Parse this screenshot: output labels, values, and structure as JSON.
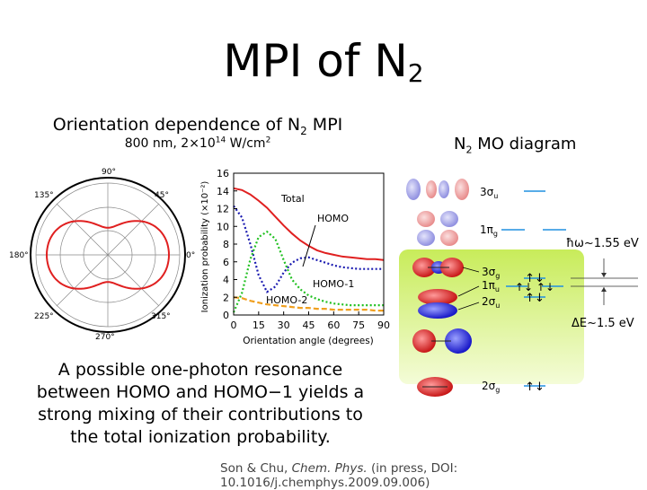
{
  "slide": {
    "title_main": "MPI of N",
    "title_sub": "2",
    "panel_title_pre": "Orientation dependence of N",
    "panel_title_sub": "2",
    "panel_title_post": " MPI",
    "panel_subtitle_pre": "800 nm, 2×10",
    "panel_subtitle_sup": "14",
    "panel_subtitle_post": " W/cm",
    "panel_subtitle_sup2": "2",
    "mo_title_pre": "N",
    "mo_title_sub": "2",
    "mo_title_post": " MO diagram",
    "caption_lines": [
      "A possible one-photon resonance",
      "between HOMO and HOMO−1 yields a",
      "strong mixing of their contributions to",
      "the total ionization probability."
    ],
    "ref_authors": "Son & Chu, ",
    "ref_journal": "Chem. Phys.",
    "ref_rest": " (in press, DOI: 10.1016/j.chemphys.2009.09.006)"
  },
  "polar_plot": {
    "angle_labels": [
      "90°",
      "45°",
      "0°",
      "315°",
      "270°",
      "225°",
      "180°",
      "135°"
    ],
    "curve_color": "#e02020"
  },
  "chart_data": {
    "type": "line",
    "xlabel": "Orientation angle (degrees)",
    "ylabel": "Ionization probability (×10⁻²)",
    "xlim": [
      0,
      90
    ],
    "ylim": [
      0,
      16
    ],
    "xticks": [
      0,
      15,
      30,
      45,
      60,
      75,
      90
    ],
    "yticks": [
      0,
      2,
      4,
      6,
      8,
      10,
      12,
      14,
      16
    ],
    "x": [
      0,
      5,
      10,
      15,
      20,
      25,
      30,
      35,
      40,
      45,
      50,
      55,
      60,
      65,
      70,
      75,
      80,
      85,
      90
    ],
    "series": [
      {
        "name": "Total",
        "style": "solid",
        "color": "#e02020",
        "values": [
          14.3,
          14.1,
          13.6,
          12.9,
          12.1,
          11.1,
          10.1,
          9.2,
          8.4,
          7.8,
          7.3,
          7.0,
          6.8,
          6.6,
          6.5,
          6.4,
          6.3,
          6.3,
          6.2
        ]
      },
      {
        "name": "HOMO",
        "style": "dotted",
        "color": "#1a1ab0",
        "values": [
          12.3,
          11.0,
          8.0,
          4.5,
          2.6,
          3.2,
          4.8,
          5.9,
          6.4,
          6.5,
          6.2,
          5.9,
          5.6,
          5.4,
          5.3,
          5.2,
          5.2,
          5.2,
          5.2
        ]
      },
      {
        "name": "HOMO-1",
        "style": "dotted",
        "color": "#20c020",
        "values": [
          0.3,
          2.5,
          6.3,
          8.8,
          9.4,
          8.6,
          6.2,
          4.0,
          2.9,
          2.2,
          1.8,
          1.5,
          1.3,
          1.2,
          1.1,
          1.1,
          1.1,
          1.1,
          1.1
        ]
      },
      {
        "name": "HOMO-2",
        "style": "dashed",
        "color": "#f0a020",
        "values": [
          2.0,
          1.9,
          1.6,
          1.4,
          1.2,
          1.1,
          1.0,
          0.9,
          0.8,
          0.8,
          0.7,
          0.7,
          0.6,
          0.6,
          0.6,
          0.6,
          0.6,
          0.5,
          0.5
        ]
      }
    ]
  },
  "mo_diagram": {
    "levels": [
      {
        "name": "3σ",
        "sub": "u",
        "electrons": ""
      },
      {
        "name": "1π",
        "sub": "g",
        "electrons": ""
      },
      {
        "name": "3σ",
        "sub": "g",
        "electrons": "↑↓"
      },
      {
        "name": "1π",
        "sub": "u",
        "electrons": "↑↓ ↑↓"
      },
      {
        "name": "2σ",
        "sub": "u",
        "electrons": "↑↓"
      },
      {
        "name": "2σ",
        "sub": "g",
        "electrons": "↑↓"
      }
    ],
    "photon_label": "ħω~1.55 eV",
    "gap_label": "ΔE~1.5 eV",
    "level_color": "#2090e0",
    "highlight_color": "#d8f080"
  }
}
